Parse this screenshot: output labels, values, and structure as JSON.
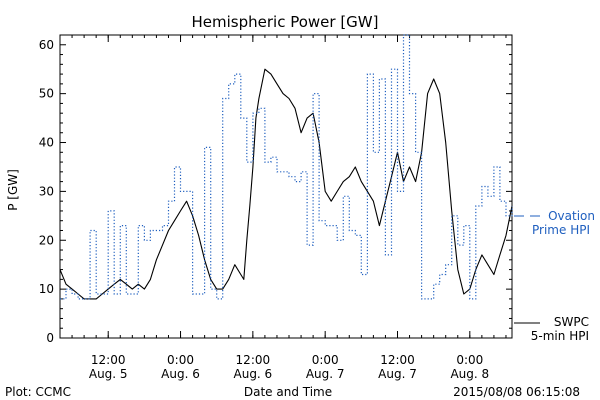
{
  "chart_data": {
    "type": "line",
    "title": "Hemispheric Power [GW]",
    "ylabel": "P [GW]",
    "xlabel": "Date and Time",
    "ylim": [
      0,
      62
    ],
    "yticks": [
      0,
      10,
      20,
      30,
      40,
      50,
      60
    ],
    "xlim": [
      "2015-08-05T04:00",
      "2015-08-08T07:00"
    ],
    "xticks": [
      {
        "time": "2015-08-05T12:00",
        "line1": "12:00",
        "line2": "Aug. 5"
      },
      {
        "time": "2015-08-06T00:00",
        "line1": "0:00",
        "line2": "Aug. 6"
      },
      {
        "time": "2015-08-06T12:00",
        "line1": "12:00",
        "line2": "Aug. 6"
      },
      {
        "time": "2015-08-07T00:00",
        "line1": "0:00",
        "line2": "Aug. 7"
      },
      {
        "time": "2015-08-07T12:00",
        "line1": "12:00",
        "line2": "Aug. 7"
      },
      {
        "time": "2015-08-08T00:00",
        "line1": "0:00",
        "line2": "Aug. 8"
      }
    ],
    "series": [
      {
        "name": "SWPC 5-min HPI",
        "style": "solid",
        "color": "#000000",
        "points": [
          [
            "2015-08-05T04:00",
            14
          ],
          [
            "2015-08-05T05:00",
            11
          ],
          [
            "2015-08-05T06:00",
            10
          ],
          [
            "2015-08-05T07:00",
            9
          ],
          [
            "2015-08-05T08:00",
            8
          ],
          [
            "2015-08-05T09:00",
            8
          ],
          [
            "2015-08-05T10:00",
            8
          ],
          [
            "2015-08-05T11:00",
            9
          ],
          [
            "2015-08-05T12:00",
            10
          ],
          [
            "2015-08-05T13:00",
            11
          ],
          [
            "2015-08-05T14:00",
            12
          ],
          [
            "2015-08-05T15:00",
            11
          ],
          [
            "2015-08-05T16:00",
            10
          ],
          [
            "2015-08-05T17:00",
            11
          ],
          [
            "2015-08-05T18:00",
            10
          ],
          [
            "2015-08-05T19:00",
            12
          ],
          [
            "2015-08-05T20:00",
            16
          ],
          [
            "2015-08-05T21:00",
            19
          ],
          [
            "2015-08-05T22:00",
            22
          ],
          [
            "2015-08-05T23:00",
            24
          ],
          [
            "2015-08-06T00:00",
            26
          ],
          [
            "2015-08-06T01:00",
            28
          ],
          [
            "2015-08-06T02:00",
            25
          ],
          [
            "2015-08-06T03:00",
            21
          ],
          [
            "2015-08-06T04:00",
            16
          ],
          [
            "2015-08-06T05:00",
            12
          ],
          [
            "2015-08-06T06:00",
            10
          ],
          [
            "2015-08-06T07:00",
            10
          ],
          [
            "2015-08-06T08:00",
            12
          ],
          [
            "2015-08-06T09:00",
            15
          ],
          [
            "2015-08-06T10:00",
            13
          ],
          [
            "2015-08-06T10:30",
            12
          ],
          [
            "2015-08-06T11:00",
            20
          ],
          [
            "2015-08-06T11:30",
            27
          ],
          [
            "2015-08-06T12:00",
            35
          ],
          [
            "2015-08-06T12:30",
            45
          ],
          [
            "2015-08-06T13:00",
            49
          ],
          [
            "2015-08-06T14:00",
            55
          ],
          [
            "2015-08-06T15:00",
            54
          ],
          [
            "2015-08-06T16:00",
            52
          ],
          [
            "2015-08-06T17:00",
            50
          ],
          [
            "2015-08-06T18:00",
            49
          ],
          [
            "2015-08-06T19:00",
            47
          ],
          [
            "2015-08-06T20:00",
            42
          ],
          [
            "2015-08-06T21:00",
            45
          ],
          [
            "2015-08-06T22:00",
            46
          ],
          [
            "2015-08-06T23:00",
            40
          ],
          [
            "2015-08-07T00:00",
            30
          ],
          [
            "2015-08-07T01:00",
            28
          ],
          [
            "2015-08-07T02:00",
            30
          ],
          [
            "2015-08-07T03:00",
            32
          ],
          [
            "2015-08-07T04:00",
            33
          ],
          [
            "2015-08-07T05:00",
            35
          ],
          [
            "2015-08-07T06:00",
            32
          ],
          [
            "2015-08-07T07:00",
            30
          ],
          [
            "2015-08-07T08:00",
            28
          ],
          [
            "2015-08-07T09:00",
            23
          ],
          [
            "2015-08-07T10:00",
            28
          ],
          [
            "2015-08-07T11:00",
            33
          ],
          [
            "2015-08-07T12:00",
            38
          ],
          [
            "2015-08-07T13:00",
            32
          ],
          [
            "2015-08-07T14:00",
            35
          ],
          [
            "2015-08-07T15:00",
            32
          ],
          [
            "2015-08-07T16:00",
            38
          ],
          [
            "2015-08-07T17:00",
            50
          ],
          [
            "2015-08-07T18:00",
            53
          ],
          [
            "2015-08-07T19:00",
            50
          ],
          [
            "2015-08-07T20:00",
            40
          ],
          [
            "2015-08-07T21:00",
            26
          ],
          [
            "2015-08-07T22:00",
            14
          ],
          [
            "2015-08-07T23:00",
            9
          ],
          [
            "2015-08-08T00:00",
            10
          ],
          [
            "2015-08-08T01:00",
            14
          ],
          [
            "2015-08-08T02:00",
            17
          ],
          [
            "2015-08-08T03:00",
            15
          ],
          [
            "2015-08-08T04:00",
            13
          ],
          [
            "2015-08-08T05:00",
            17
          ],
          [
            "2015-08-08T06:00",
            21
          ],
          [
            "2015-08-08T07:00",
            27
          ]
        ]
      },
      {
        "name": "Ovation Prime HPI",
        "style": "dotted",
        "color": "#1f5fbf",
        "points": [
          [
            "2015-08-05T04:00",
            8
          ],
          [
            "2015-08-05T05:00",
            10
          ],
          [
            "2015-08-05T06:00",
            9
          ],
          [
            "2015-08-05T07:00",
            8
          ],
          [
            "2015-08-05T08:00",
            8
          ],
          [
            "2015-08-05T09:00",
            22
          ],
          [
            "2015-08-05T10:00",
            9
          ],
          [
            "2015-08-05T11:00",
            9
          ],
          [
            "2015-08-05T12:00",
            26
          ],
          [
            "2015-08-05T13:00",
            9
          ],
          [
            "2015-08-05T14:00",
            23
          ],
          [
            "2015-08-05T15:00",
            9
          ],
          [
            "2015-08-05T16:00",
            9
          ],
          [
            "2015-08-05T17:00",
            23
          ],
          [
            "2015-08-05T18:00",
            20
          ],
          [
            "2015-08-05T19:00",
            22
          ],
          [
            "2015-08-05T20:00",
            22
          ],
          [
            "2015-08-05T21:00",
            23
          ],
          [
            "2015-08-05T22:00",
            28
          ],
          [
            "2015-08-05T23:00",
            35
          ],
          [
            "2015-08-06T00:00",
            30
          ],
          [
            "2015-08-06T01:00",
            30
          ],
          [
            "2015-08-06T02:00",
            9
          ],
          [
            "2015-08-06T03:00",
            9
          ],
          [
            "2015-08-06T04:00",
            39
          ],
          [
            "2015-08-06T05:00",
            10
          ],
          [
            "2015-08-06T06:00",
            8
          ],
          [
            "2015-08-06T07:00",
            49
          ],
          [
            "2015-08-06T08:00",
            52
          ],
          [
            "2015-08-06T09:00",
            54
          ],
          [
            "2015-08-06T10:00",
            45
          ],
          [
            "2015-08-06T11:00",
            36
          ],
          [
            "2015-08-06T12:00",
            46
          ],
          [
            "2015-08-06T13:00",
            47
          ],
          [
            "2015-08-06T14:00",
            36
          ],
          [
            "2015-08-06T15:00",
            37
          ],
          [
            "2015-08-06T16:00",
            34
          ],
          [
            "2015-08-06T17:00",
            34
          ],
          [
            "2015-08-06T18:00",
            33
          ],
          [
            "2015-08-06T19:00",
            32
          ],
          [
            "2015-08-06T20:00",
            34
          ],
          [
            "2015-08-06T21:00",
            19
          ],
          [
            "2015-08-06T22:00",
            50
          ],
          [
            "2015-08-06T23:00",
            24
          ],
          [
            "2015-08-07T00:00",
            23
          ],
          [
            "2015-08-07T01:00",
            23
          ],
          [
            "2015-08-07T02:00",
            20
          ],
          [
            "2015-08-07T03:00",
            29
          ],
          [
            "2015-08-07T04:00",
            22
          ],
          [
            "2015-08-07T05:00",
            21
          ],
          [
            "2015-08-07T06:00",
            13
          ],
          [
            "2015-08-07T07:00",
            54
          ],
          [
            "2015-08-07T08:00",
            38
          ],
          [
            "2015-08-07T09:00",
            53
          ],
          [
            "2015-08-07T10:00",
            17
          ],
          [
            "2015-08-07T11:00",
            55
          ],
          [
            "2015-08-07T12:00",
            30
          ],
          [
            "2015-08-07T13:00",
            62
          ],
          [
            "2015-08-07T14:00",
            50
          ],
          [
            "2015-08-07T15:00",
            38
          ],
          [
            "2015-08-07T16:00",
            8
          ],
          [
            "2015-08-07T17:00",
            8
          ],
          [
            "2015-08-07T18:00",
            11
          ],
          [
            "2015-08-07T19:00",
            13
          ],
          [
            "2015-08-07T20:00",
            15
          ],
          [
            "2015-08-07T21:00",
            25
          ],
          [
            "2015-08-07T22:00",
            19
          ],
          [
            "2015-08-07T23:00",
            23
          ],
          [
            "2015-08-08T00:00",
            8
          ],
          [
            "2015-08-08T01:00",
            27
          ],
          [
            "2015-08-08T02:00",
            31
          ],
          [
            "2015-08-08T03:00",
            29
          ],
          [
            "2015-08-08T04:00",
            35
          ],
          [
            "2015-08-08T05:00",
            28
          ],
          [
            "2015-08-08T06:00",
            25
          ],
          [
            "2015-08-08T07:00",
            27
          ]
        ]
      }
    ],
    "legend": {
      "placement": "right",
      "ovation_line1": "Ovation",
      "ovation_line2": "Prime HPI",
      "swpc_line1": "SWPC",
      "swpc_line2": "5-min HPI"
    }
  },
  "footer": {
    "left": "Plot: CCMC",
    "center": "Date and Time",
    "right": "2015/08/08 06:15:08"
  }
}
